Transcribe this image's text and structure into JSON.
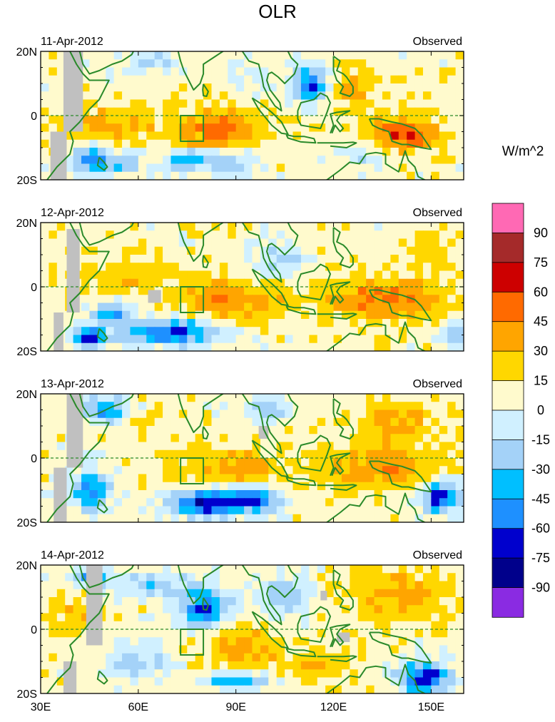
{
  "chart_data": {
    "type": "heatmap",
    "title": "OLR",
    "units": "W/m^2",
    "panel_source": "Observed",
    "panels": [
      {
        "date": "11-Apr-2012",
        "label": "Observed"
      },
      {
        "date": "12-Apr-2012",
        "label": "Observed"
      },
      {
        "date": "13-Apr-2012",
        "label": "Observed"
      },
      {
        "date": "14-Apr-2012",
        "label": "Observed"
      }
    ],
    "x_ticks": [
      "30E",
      "60E",
      "90E",
      "120E",
      "150E"
    ],
    "x_tick_values": [
      30,
      60,
      90,
      120,
      150
    ],
    "xlim": [
      30,
      160
    ],
    "y_ticks": [
      "20N",
      "0",
      "20S"
    ],
    "y_tick_values": [
      20,
      0,
      -20
    ],
    "ylim": [
      -20,
      20
    ],
    "colorbar": {
      "levels": [
        "90",
        "75",
        "60",
        "45",
        "30",
        "15",
        "0",
        "-15",
        "-30",
        "-45",
        "-60",
        "-75",
        "-90"
      ],
      "colors": [
        "#ff69b4",
        "#a52a2a",
        "#cd0000",
        "#ff6a00",
        "#ffa500",
        "#ffd700",
        "#fffacd",
        "#d0f0ff",
        "#a4d2f8",
        "#00bfff",
        "#1e90ff",
        "#0000cd",
        "#00008b",
        "#8a2be2"
      ]
    },
    "colors": {
      "coast": "#2a8a2a",
      "land_mask": "#c0c0c0",
      "equator": "#2a8a2a"
    }
  }
}
